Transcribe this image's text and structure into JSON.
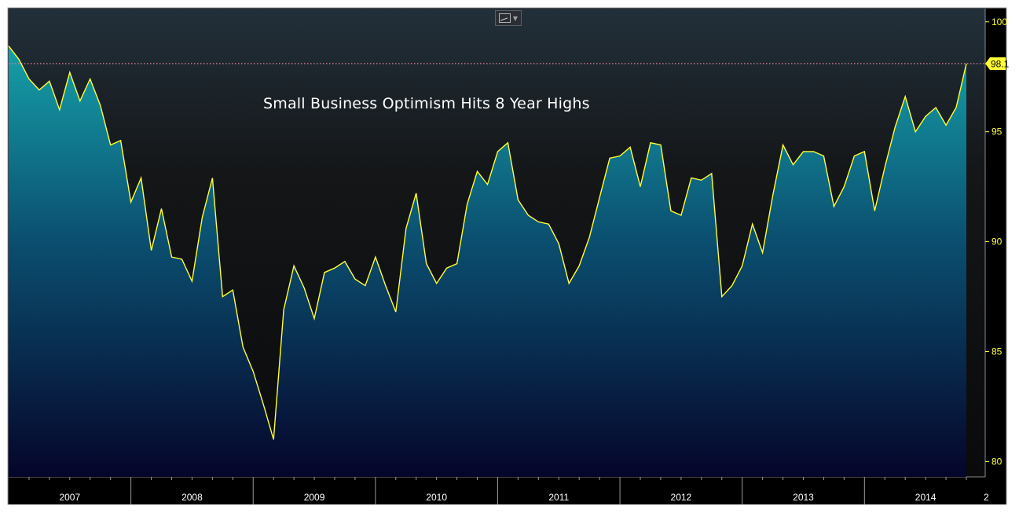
{
  "toolbar": {
    "chart_type_icon": "line-chart-icon",
    "dropdown_icon": "chevron-down-icon"
  },
  "colors": {
    "line": "#ffff33",
    "fill_top": "#16a0a8",
    "fill_bottom": "#05052a",
    "bg_top": "#22303a",
    "bg_bottom": "#0a0a0c",
    "last_value_badge": "#ffff33",
    "reference_line": "#e07aa0",
    "axis_text": "#ffff33"
  },
  "chart_data": {
    "type": "area",
    "title": "Small Business Optimism Hits 8 Year Highs",
    "xlabel": "",
    "ylabel": "",
    "ylim": [
      79.3,
      100.6
    ],
    "yticks": [
      80,
      85,
      90,
      95,
      100
    ],
    "year_labels": [
      "2007",
      "2008",
      "2009",
      "2010",
      "2011",
      "2012",
      "2013",
      "2014",
      "2"
    ],
    "last_value_label": "98.1",
    "reference_value": 98.1,
    "grid": false,
    "legend": "none",
    "x_start": "2007-01",
    "x_end": "2014-11",
    "values": [
      98.9,
      98.3,
      97.4,
      96.9,
      97.3,
      96.0,
      97.7,
      96.4,
      97.4,
      96.2,
      94.4,
      94.6,
      91.8,
      92.9,
      89.6,
      91.5,
      89.3,
      89.2,
      88.2,
      91.1,
      92.9,
      87.5,
      87.8,
      85.2,
      84.1,
      82.6,
      81.0,
      86.9,
      88.9,
      87.9,
      86.5,
      88.6,
      88.8,
      89.1,
      88.3,
      88.0,
      89.3,
      88.0,
      86.8,
      90.6,
      92.2,
      89.0,
      88.1,
      88.8,
      89.0,
      91.7,
      93.2,
      92.6,
      94.1,
      94.5,
      91.9,
      91.2,
      90.9,
      90.8,
      89.9,
      88.1,
      88.9,
      90.2,
      92.0,
      93.8,
      93.9,
      94.3,
      92.5,
      94.5,
      94.4,
      91.4,
      91.2,
      92.9,
      92.8,
      93.1,
      87.5,
      88.0,
      88.9,
      90.8,
      89.5,
      92.1,
      94.4,
      93.5,
      94.1,
      94.1,
      93.9,
      91.6,
      92.5,
      93.9,
      94.1,
      91.4,
      93.4,
      95.2,
      96.6,
      95.0,
      95.7,
      96.1,
      95.3,
      96.1,
      98.1
    ]
  }
}
